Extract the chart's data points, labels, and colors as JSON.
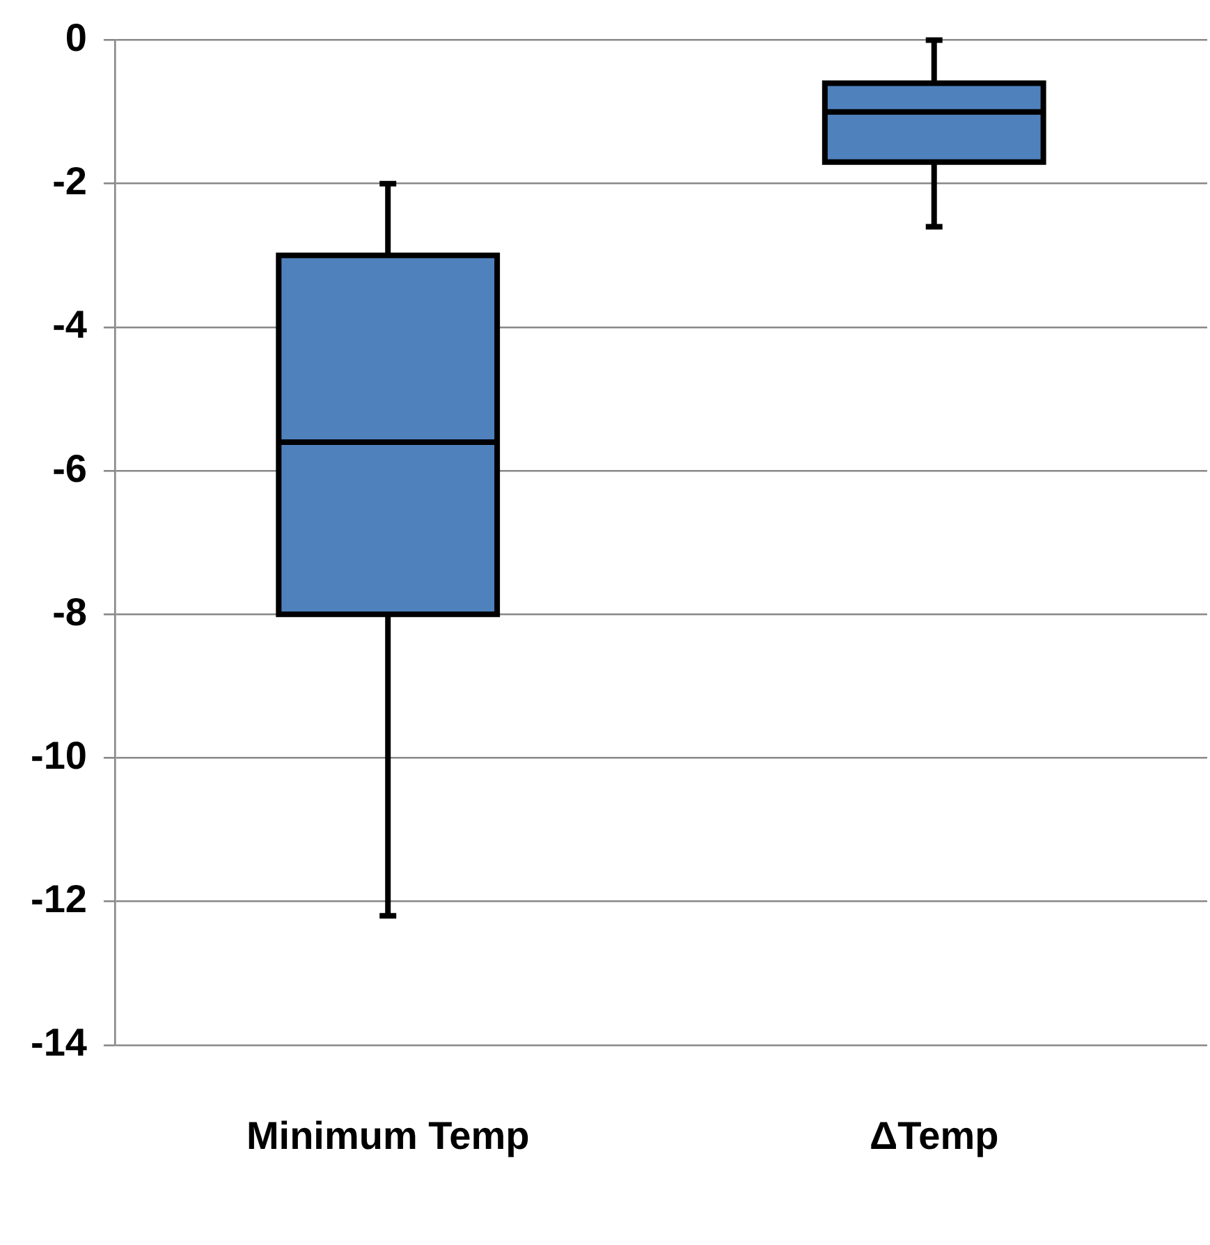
{
  "chart_data": {
    "type": "box",
    "categories": [
      "Minimum Temp",
      "ΔTemp"
    ],
    "boxes": [
      {
        "low": -12.2,
        "q1": -8,
        "median": -5.6,
        "q3": -3,
        "high": -2
      },
      {
        "low": -2.6,
        "q1": -1.7,
        "median": -1,
        "q3": -0.6,
        "high": 0
      }
    ],
    "color": "#4f81bd",
    "ylim": [
      -14,
      0
    ],
    "yticks": [
      -14,
      -12,
      -10,
      -8,
      -6,
      -4,
      -2,
      0
    ],
    "grid": "y",
    "legend": false
  }
}
